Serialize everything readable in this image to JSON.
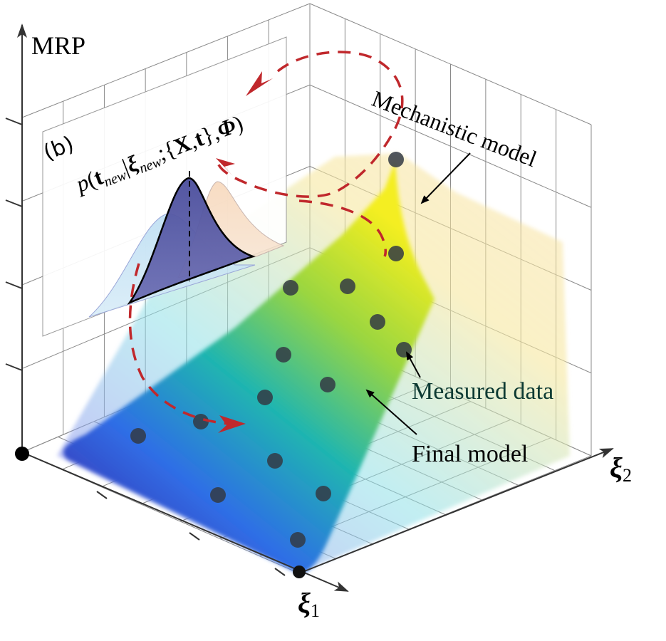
{
  "axes": {
    "y_label": "MRP",
    "x1_symbol": "ξ",
    "x1_sub": "1",
    "x2_symbol": "ξ",
    "x2_sub": "2"
  },
  "inset": {
    "panel_tag": "(b)",
    "formula_p": "p",
    "formula_open": "(",
    "formula_t": "t",
    "formula_new1": "new",
    "formula_bar": "|",
    "formula_xi": "ξ",
    "formula_new2": "new",
    "formula_sep": ";{",
    "formula_X": "X",
    "formula_comma1": ",",
    "formula_t2": "t",
    "formula_close_set": "},",
    "formula_Phi": "Φ",
    "formula_close": ")"
  },
  "annotations": {
    "mechanistic": "Mechanistic model",
    "measured": "Measured data",
    "final": "Final model"
  },
  "colors": {
    "arrow_red": "#c0282c",
    "dot": "#333a44",
    "grid": "#8a8a8a"
  }
}
